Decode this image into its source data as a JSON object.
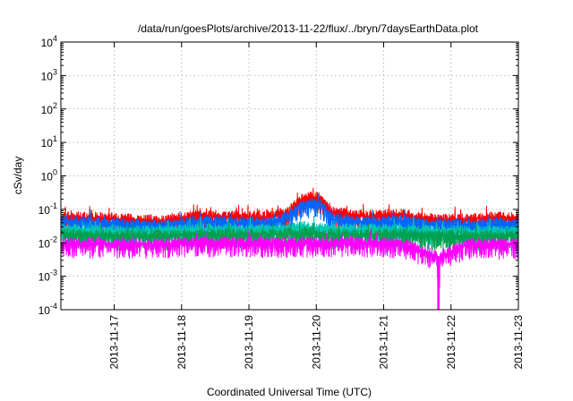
{
  "chart_data": {
    "type": "line",
    "title": "/data/run/goesPlots/archive/2013-11-22/flux/../bryn/7daysEarthData.plot",
    "xlabel": "Coordinated Universal Time (UTC)",
    "ylabel": "cSv/day",
    "x_type": "date",
    "xlim": [
      "2013-11-16T05:00",
      "2013-11-23T00:00"
    ],
    "x_ticks": [
      "2013-11-17",
      "2013-11-18",
      "2013-11-19",
      "2013-11-20",
      "2013-11-21",
      "2013-11-22",
      "2013-11-23"
    ],
    "y_scale": "log",
    "ylim": [
      0.0001,
      10000
    ],
    "y_ticks": [
      {
        "value": 0.0001,
        "base": "10",
        "exp": "-4"
      },
      {
        "value": 0.001,
        "base": "10",
        "exp": "-3"
      },
      {
        "value": 0.01,
        "base": "10",
        "exp": "-2"
      },
      {
        "value": 0.1,
        "base": "10",
        "exp": "-1"
      },
      {
        "value": 1,
        "base": "10",
        "exp": "0"
      },
      {
        "value": 10,
        "base": "10",
        "exp": "1"
      },
      {
        "value": 100,
        "base": "10",
        "exp": "2"
      },
      {
        "value": 1000,
        "base": "10",
        "exp": "3"
      },
      {
        "value": 10000,
        "base": "10",
        "exp": "4"
      }
    ],
    "grid": true,
    "legend": "none",
    "series": [
      {
        "color": "#ff0000",
        "x": [
          "2013-11-16T06:00",
          "2013-11-16T18:00",
          "2013-11-17T06:00",
          "2013-11-17T18:00",
          "2013-11-18T06:00",
          "2013-11-18T18:00",
          "2013-11-19T06:00",
          "2013-11-19T14:00",
          "2013-11-19T18:00",
          "2013-11-19T22:00",
          "2013-11-20T02:00",
          "2013-11-20T06:00",
          "2013-11-20T18:00",
          "2013-11-21T06:00",
          "2013-11-21T18:00",
          "2013-11-22T06:00",
          "2013-11-22T18:00",
          "2013-11-23T00:00"
        ],
        "values": [
          0.06,
          0.055,
          0.05,
          0.045,
          0.065,
          0.06,
          0.06,
          0.08,
          0.18,
          0.25,
          0.2,
          0.08,
          0.06,
          0.07,
          0.05,
          0.05,
          0.06,
          0.05
        ]
      },
      {
        "color": "#0066ff",
        "x": [
          "2013-11-16T06:00",
          "2013-11-16T18:00",
          "2013-11-17T06:00",
          "2013-11-17T18:00",
          "2013-11-18T06:00",
          "2013-11-18T18:00",
          "2013-11-19T06:00",
          "2013-11-19T14:00",
          "2013-11-19T18:00",
          "2013-11-19T22:00",
          "2013-11-20T02:00",
          "2013-11-20T06:00",
          "2013-11-20T18:00",
          "2013-11-21T06:00",
          "2013-11-21T18:00",
          "2013-11-22T06:00",
          "2013-11-22T18:00",
          "2013-11-23T00:00"
        ],
        "values": [
          0.045,
          0.04,
          0.035,
          0.033,
          0.045,
          0.04,
          0.042,
          0.06,
          0.12,
          0.15,
          0.12,
          0.05,
          0.04,
          0.045,
          0.035,
          0.035,
          0.04,
          0.035
        ]
      },
      {
        "color": "#00c8b4",
        "x": [
          "2013-11-16T06:00",
          "2013-11-17T06:00",
          "2013-11-18T06:00",
          "2013-11-19T06:00",
          "2013-11-19T20:00",
          "2013-11-20T06:00",
          "2013-11-21T06:00",
          "2013-11-22T06:00",
          "2013-11-23T00:00"
        ],
        "values": [
          0.025,
          0.022,
          0.025,
          0.025,
          0.03,
          0.025,
          0.025,
          0.022,
          0.022
        ]
      },
      {
        "color": "#00a050",
        "x": [
          "2013-11-16T06:00",
          "2013-11-17T06:00",
          "2013-11-18T06:00",
          "2013-11-19T06:00",
          "2013-11-19T20:00",
          "2013-11-20T06:00",
          "2013-11-21T06:00",
          "2013-11-22T06:00",
          "2013-11-23T00:00"
        ],
        "values": [
          0.018,
          0.016,
          0.018,
          0.018,
          0.02,
          0.018,
          0.018,
          0.016,
          0.016
        ]
      },
      {
        "color": "#ff00ff",
        "x": [
          "2013-11-16T06:00",
          "2013-11-17T06:00",
          "2013-11-18T06:00",
          "2013-11-19T06:00",
          "2013-11-20T06:00",
          "2013-11-21T06:00",
          "2013-11-21T19:00",
          "2013-11-21T19:30",
          "2013-11-21T20:00",
          "2013-11-22T06:00",
          "2013-11-23T00:00"
        ],
        "values": [
          0.01,
          0.009,
          0.01,
          0.01,
          0.01,
          0.01,
          0.004,
          0.0001,
          0.004,
          0.009,
          0.009
        ]
      }
    ]
  }
}
